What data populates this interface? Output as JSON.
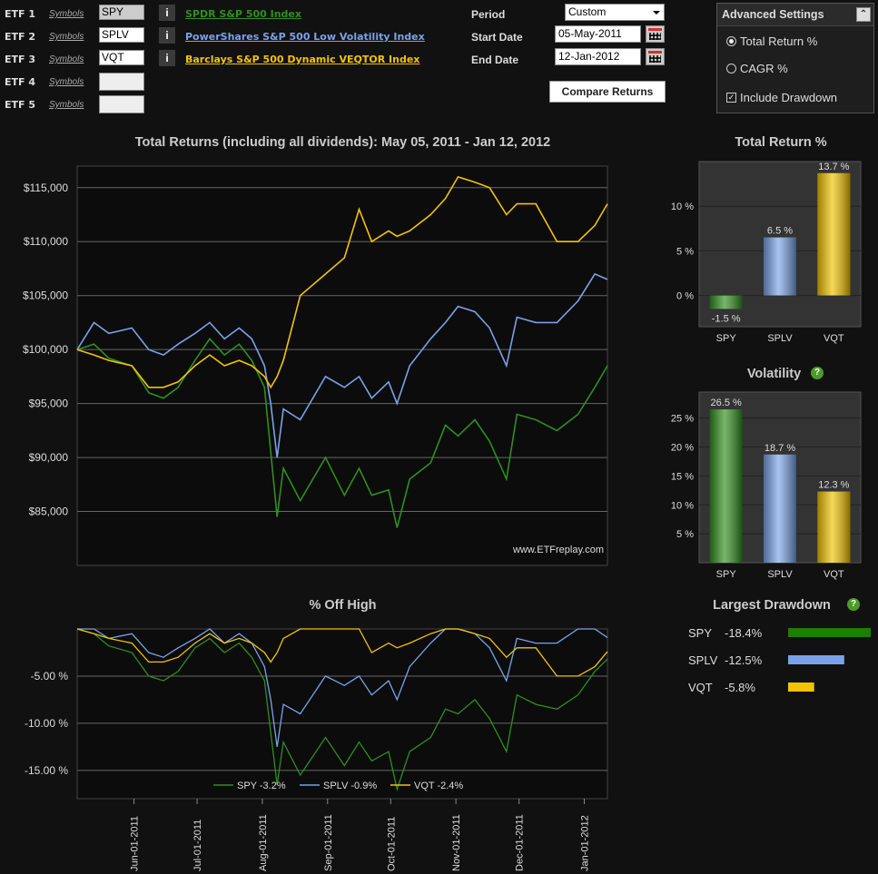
{
  "etfs": [
    {
      "label": "ETF 1",
      "symbols_link": "Symbols",
      "symbol": "SPY",
      "info": "i",
      "name": "SPDR S&P 500 Index",
      "color": "#2f8f1e"
    },
    {
      "label": "ETF 2",
      "symbols_link": "Symbols",
      "symbol": "SPLV",
      "info": "i",
      "name": "PowerShares S&P 500 Low Volatility Index",
      "color": "#7aa2e8"
    },
    {
      "label": "ETF 3",
      "symbols_link": "Symbols",
      "symbol": "VQT",
      "info": "i",
      "name": "Barclays S&P 500 Dynamic VEQTOR Index",
      "color": "#f2c400"
    },
    {
      "label": "ETF 4",
      "symbols_link": "Symbols",
      "symbol": "",
      "info": "",
      "name": "",
      "color": ""
    },
    {
      "label": "ETF 5",
      "symbols_link": "Symbols",
      "symbol": "",
      "info": "",
      "name": "",
      "color": ""
    }
  ],
  "form": {
    "period_label": "Period",
    "period_value": "Custom",
    "start_label": "Start Date",
    "start_value": "05-May-2011",
    "end_label": "End Date",
    "end_value": "12-Jan-2012",
    "compare_button": "Compare Returns"
  },
  "advanced": {
    "title": "Advanced Settings",
    "total_return": "Total Return %",
    "cagr": "CAGR %",
    "drawdown": "Include Drawdown"
  },
  "chart_data": [
    {
      "type": "line",
      "title": "Total Returns (including all dividends): May 05, 2011 - Jan 12, 2012",
      "watermark": "www.ETFreplay.com",
      "xlim": [
        "2011-05-05",
        "2012-01-12"
      ],
      "ylim": [
        80000,
        117000
      ],
      "yticks": [
        85000,
        90000,
        95000,
        100000,
        105000,
        110000,
        115000
      ],
      "ytick_labels": [
        "$85,000",
        "$90,000",
        "$95,000",
        "$100,000",
        "$105,000",
        "$110,000",
        "$115,000"
      ],
      "series": [
        {
          "name": "SPY",
          "color": "#2f8f1e",
          "x": [
            "2011-05-05",
            "2011-05-13",
            "2011-05-20",
            "2011-05-31",
            "2011-06-08",
            "2011-06-15",
            "2011-06-22",
            "2011-06-30",
            "2011-07-07",
            "2011-07-14",
            "2011-07-21",
            "2011-07-27",
            "2011-08-02",
            "2011-08-05",
            "2011-08-08",
            "2011-08-11",
            "2011-08-19",
            "2011-08-31",
            "2011-09-09",
            "2011-09-16",
            "2011-09-22",
            "2011-09-30",
            "2011-10-04",
            "2011-10-10",
            "2011-10-20",
            "2011-10-27",
            "2011-11-02",
            "2011-11-10",
            "2011-11-17",
            "2011-11-25",
            "2011-11-30",
            "2011-12-09",
            "2011-12-19",
            "2011-12-29",
            "2012-01-06",
            "2012-01-12"
          ],
          "y": [
            100000,
            100500,
            99200,
            98500,
            96000,
            95500,
            96500,
            99000,
            101000,
            99500,
            100500,
            99000,
            96500,
            90500,
            84500,
            89000,
            86000,
            90000,
            86500,
            89000,
            86500,
            87000,
            83500,
            88000,
            89500,
            93000,
            92000,
            93500,
            91500,
            88000,
            94000,
            93500,
            92500,
            94000,
            96500,
            98500
          ]
        },
        {
          "name": "SPLV",
          "color": "#7aa2e8",
          "x": [
            "2011-05-05",
            "2011-05-13",
            "2011-05-20",
            "2011-05-31",
            "2011-06-08",
            "2011-06-15",
            "2011-06-22",
            "2011-06-30",
            "2011-07-07",
            "2011-07-14",
            "2011-07-21",
            "2011-07-27",
            "2011-08-02",
            "2011-08-05",
            "2011-08-08",
            "2011-08-11",
            "2011-08-19",
            "2011-08-31",
            "2011-09-09",
            "2011-09-16",
            "2011-09-22",
            "2011-09-30",
            "2011-10-04",
            "2011-10-10",
            "2011-10-20",
            "2011-10-27",
            "2011-11-02",
            "2011-11-10",
            "2011-11-17",
            "2011-11-25",
            "2011-11-30",
            "2011-12-09",
            "2011-12-19",
            "2011-12-29",
            "2012-01-06",
            "2012-01-12"
          ],
          "y": [
            100000,
            102500,
            101500,
            102000,
            100000,
            99500,
            100500,
            101500,
            102500,
            101000,
            102000,
            101000,
            98500,
            95000,
            90000,
            94500,
            93500,
            97500,
            96500,
            97500,
            95500,
            97000,
            95000,
            98500,
            101000,
            102500,
            104000,
            103500,
            102000,
            98500,
            103000,
            102500,
            102500,
            104500,
            107000,
            106500
          ]
        },
        {
          "name": "VQT",
          "color": "#f2c400",
          "x": [
            "2011-05-05",
            "2011-05-13",
            "2011-05-20",
            "2011-05-31",
            "2011-06-08",
            "2011-06-15",
            "2011-06-22",
            "2011-06-30",
            "2011-07-07",
            "2011-07-14",
            "2011-07-21",
            "2011-07-27",
            "2011-08-02",
            "2011-08-05",
            "2011-08-08",
            "2011-08-11",
            "2011-08-19",
            "2011-08-31",
            "2011-09-09",
            "2011-09-16",
            "2011-09-22",
            "2011-09-30",
            "2011-10-04",
            "2011-10-10",
            "2011-10-20",
            "2011-10-27",
            "2011-11-02",
            "2011-11-10",
            "2011-11-17",
            "2011-11-25",
            "2011-11-30",
            "2011-12-09",
            "2011-12-19",
            "2011-12-29",
            "2012-01-06",
            "2012-01-12"
          ],
          "y": [
            100000,
            99500,
            99000,
            98500,
            96500,
            96500,
            97000,
            98500,
            99500,
            98500,
            99000,
            98500,
            97500,
            96500,
            97500,
            99000,
            105000,
            107000,
            108500,
            113000,
            110000,
            111000,
            110500,
            111000,
            112500,
            114000,
            116000,
            115500,
            115000,
            112500,
            113500,
            113500,
            110000,
            110000,
            111500,
            113500
          ]
        }
      ]
    },
    {
      "type": "line",
      "title": "% Off High",
      "ylim": [
        -18,
        0
      ],
      "yticks": [
        -15,
        -10,
        -5
      ],
      "ytick_labels": [
        "-15.00 %",
        "-10.00 %",
        "-5.00 %"
      ],
      "xtick_labels": [
        "Jun-01-2011",
        "Jul-01-2011",
        "Aug-01-2011",
        "Sep-01-2011",
        "Oct-01-2011",
        "Nov-01-2011",
        "Dec-01-2011",
        "Jan-01-2012"
      ],
      "xticks": [
        "2011-06-01",
        "2011-07-01",
        "2011-08-01",
        "2011-09-01",
        "2011-10-01",
        "2011-11-01",
        "2011-12-01",
        "2012-01-01"
      ],
      "legend": [
        "SPY -3.2%",
        "SPLV -0.9%",
        "VQT -2.4%"
      ],
      "series": [
        {
          "name": "SPY",
          "color": "#2f8f1e",
          "x": [
            "2011-05-05",
            "2011-05-13",
            "2011-05-20",
            "2011-05-31",
            "2011-06-08",
            "2011-06-15",
            "2011-06-22",
            "2011-06-30",
            "2011-07-07",
            "2011-07-14",
            "2011-07-21",
            "2011-07-27",
            "2011-08-02",
            "2011-08-05",
            "2011-08-08",
            "2011-08-11",
            "2011-08-19",
            "2011-08-31",
            "2011-09-09",
            "2011-09-16",
            "2011-09-22",
            "2011-09-30",
            "2011-10-04",
            "2011-10-10",
            "2011-10-20",
            "2011-10-27",
            "2011-11-02",
            "2011-11-10",
            "2011-11-17",
            "2011-11-25",
            "2011-11-30",
            "2011-12-09",
            "2011-12-19",
            "2011-12-29",
            "2012-01-06",
            "2012-01-12"
          ],
          "y": [
            0,
            -0.5,
            -1.8,
            -2.5,
            -5,
            -5.5,
            -4.5,
            -2,
            -1,
            -2.5,
            -1.5,
            -3,
            -5.5,
            -11,
            -16.5,
            -12,
            -15.5,
            -11.5,
            -14.5,
            -12,
            -14,
            -13,
            -17,
            -13,
            -11.5,
            -8.5,
            -9,
            -7.5,
            -9.5,
            -13,
            -7,
            -8,
            -8.5,
            -7,
            -4.5,
            -3.2
          ]
        },
        {
          "name": "SPLV",
          "color": "#7aa2e8",
          "x": [
            "2011-05-05",
            "2011-05-13",
            "2011-05-20",
            "2011-05-31",
            "2011-06-08",
            "2011-06-15",
            "2011-06-22",
            "2011-06-30",
            "2011-07-07",
            "2011-07-14",
            "2011-07-21",
            "2011-07-27",
            "2011-08-02",
            "2011-08-05",
            "2011-08-08",
            "2011-08-11",
            "2011-08-19",
            "2011-08-31",
            "2011-09-09",
            "2011-09-16",
            "2011-09-22",
            "2011-09-30",
            "2011-10-04",
            "2011-10-10",
            "2011-10-20",
            "2011-10-27",
            "2011-11-02",
            "2011-11-10",
            "2011-11-17",
            "2011-11-25",
            "2011-11-30",
            "2011-12-09",
            "2011-12-19",
            "2011-12-29",
            "2012-01-06",
            "2012-01-12"
          ],
          "y": [
            0,
            0,
            -1,
            -0.5,
            -2.5,
            -3,
            -2,
            -1,
            0,
            -1.5,
            -0.5,
            -1.5,
            -4,
            -7.5,
            -12.5,
            -8,
            -9,
            -5,
            -6,
            -5,
            -7,
            -5.5,
            -7.5,
            -4,
            -1.5,
            0,
            0,
            -0.5,
            -2,
            -5.5,
            -1,
            -1.5,
            -1.5,
            0,
            0,
            -0.9
          ]
        },
        {
          "name": "VQT",
          "color": "#f2c400",
          "x": [
            "2011-05-05",
            "2011-05-13",
            "2011-05-20",
            "2011-05-31",
            "2011-06-08",
            "2011-06-15",
            "2011-06-22",
            "2011-06-30",
            "2011-07-07",
            "2011-07-14",
            "2011-07-21",
            "2011-07-27",
            "2011-08-02",
            "2011-08-05",
            "2011-08-08",
            "2011-08-11",
            "2011-08-19",
            "2011-08-31",
            "2011-09-09",
            "2011-09-16",
            "2011-09-22",
            "2011-09-30",
            "2011-10-04",
            "2011-10-10",
            "2011-10-20",
            "2011-10-27",
            "2011-11-02",
            "2011-11-10",
            "2011-11-17",
            "2011-11-25",
            "2011-11-30",
            "2011-12-09",
            "2011-12-19",
            "2011-12-29",
            "2012-01-06",
            "2012-01-12"
          ],
          "y": [
            0,
            -0.5,
            -1,
            -1.5,
            -3.5,
            -3.5,
            -3,
            -1.5,
            -0.5,
            -1.5,
            -1,
            -1.5,
            -2.5,
            -3.5,
            -2.5,
            -1,
            0,
            0,
            0,
            0,
            -2.5,
            -1.5,
            -2,
            -1.5,
            -0.5,
            0,
            0,
            -0.5,
            -1,
            -3,
            -2,
            -2,
            -5,
            -5,
            -4,
            -2.4
          ]
        }
      ]
    },
    {
      "type": "bar",
      "title": "Total Return %",
      "categories": [
        "SPY",
        "SPLV",
        "VQT"
      ],
      "values": [
        -1.5,
        6.5,
        13.7
      ],
      "value_labels": [
        "-1.5 %",
        "6.5 %",
        "13.7 %"
      ],
      "colors": [
        "#2f8f1e",
        "#7aa2e8",
        "#f2c400"
      ],
      "ylim": [
        -3.5,
        15
      ],
      "yticks": [
        0,
        5,
        10
      ],
      "ytick_labels": [
        "0 %",
        "5 %",
        "10 %"
      ]
    },
    {
      "type": "bar",
      "title": "Volatility",
      "categories": [
        "SPY",
        "SPLV",
        "VQT"
      ],
      "values": [
        26.5,
        18.7,
        12.3
      ],
      "value_labels": [
        "26.5 %",
        "18.7 %",
        "12.3 %"
      ],
      "colors": [
        "#2f8f1e",
        "#7aa2e8",
        "#f2c400"
      ],
      "ylim": [
        0,
        29.5
      ],
      "yticks": [
        5,
        10,
        15,
        20,
        25
      ],
      "ytick_labels": [
        "5 %",
        "10 %",
        "15 %",
        "20 %",
        "25 %"
      ]
    },
    {
      "type": "bar",
      "title": "Largest Drawdown",
      "categories": [
        "SPY",
        "SPLV",
        "VQT"
      ],
      "values": [
        -18.4,
        -12.5,
        -5.8
      ],
      "value_labels": [
        "-18.4%",
        "-12.5%",
        "-5.8%"
      ],
      "colors": [
        "#1f7d00",
        "#7aa2e8",
        "#f2c400"
      ]
    }
  ]
}
